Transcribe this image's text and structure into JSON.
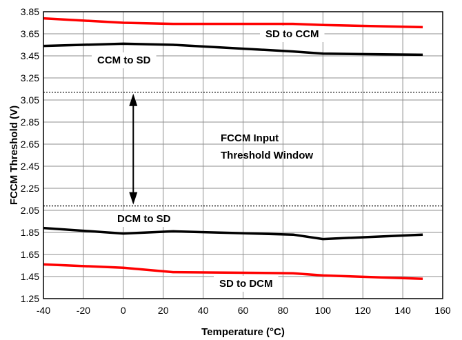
{
  "chart_data": {
    "type": "line",
    "xlabel": "Temperature (°C)",
    "ylabel": "FCCM Threshold (V)",
    "xlim": [
      -40,
      160
    ],
    "ylim": [
      1.25,
      3.85
    ],
    "x_ticks": [
      -40,
      -20,
      0,
      20,
      40,
      60,
      80,
      100,
      120,
      140,
      160
    ],
    "y_ticks": [
      1.25,
      1.45,
      1.65,
      1.85,
      2.05,
      2.25,
      2.45,
      2.65,
      2.85,
      3.05,
      3.25,
      3.45,
      3.65,
      3.85
    ],
    "y_tick_labels": [
      "1.25",
      "1.45",
      "1.65",
      "1.85",
      "2.05",
      "2.25",
      "2.45",
      "2.65",
      "2.85",
      "3.05",
      "3.25",
      "3.45",
      "3.65",
      "3.85"
    ],
    "grid": true,
    "series": [
      {
        "name": "SD to CCM",
        "color": "#ff0000",
        "x": [
          -40,
          0,
          25,
          85,
          100,
          150
        ],
        "y": [
          3.79,
          3.75,
          3.74,
          3.74,
          3.73,
          3.71
        ]
      },
      {
        "name": "CCM to SD",
        "color": "#000000",
        "x": [
          -40,
          0,
          25,
          85,
          100,
          150
        ],
        "y": [
          3.54,
          3.56,
          3.55,
          3.49,
          3.47,
          3.46
        ]
      },
      {
        "name": "DCM  to SD",
        "color": "#000000",
        "x": [
          -40,
          0,
          25,
          85,
          100,
          150
        ],
        "y": [
          1.89,
          1.84,
          1.86,
          1.83,
          1.79,
          1.83
        ]
      },
      {
        "name": "SD to DCM",
        "color": "#ff0000",
        "x": [
          -40,
          0,
          25,
          85,
          100,
          150
        ],
        "y": [
          1.56,
          1.53,
          1.49,
          1.48,
          1.46,
          1.43
        ]
      }
    ],
    "threshold_lines": [
      3.12,
      2.09
    ],
    "window_annotation": {
      "line1": "FCCM Input",
      "line2": "Threshold Window",
      "x": 5,
      "y_top": 3.12,
      "y_bottom": 2.09
    }
  }
}
